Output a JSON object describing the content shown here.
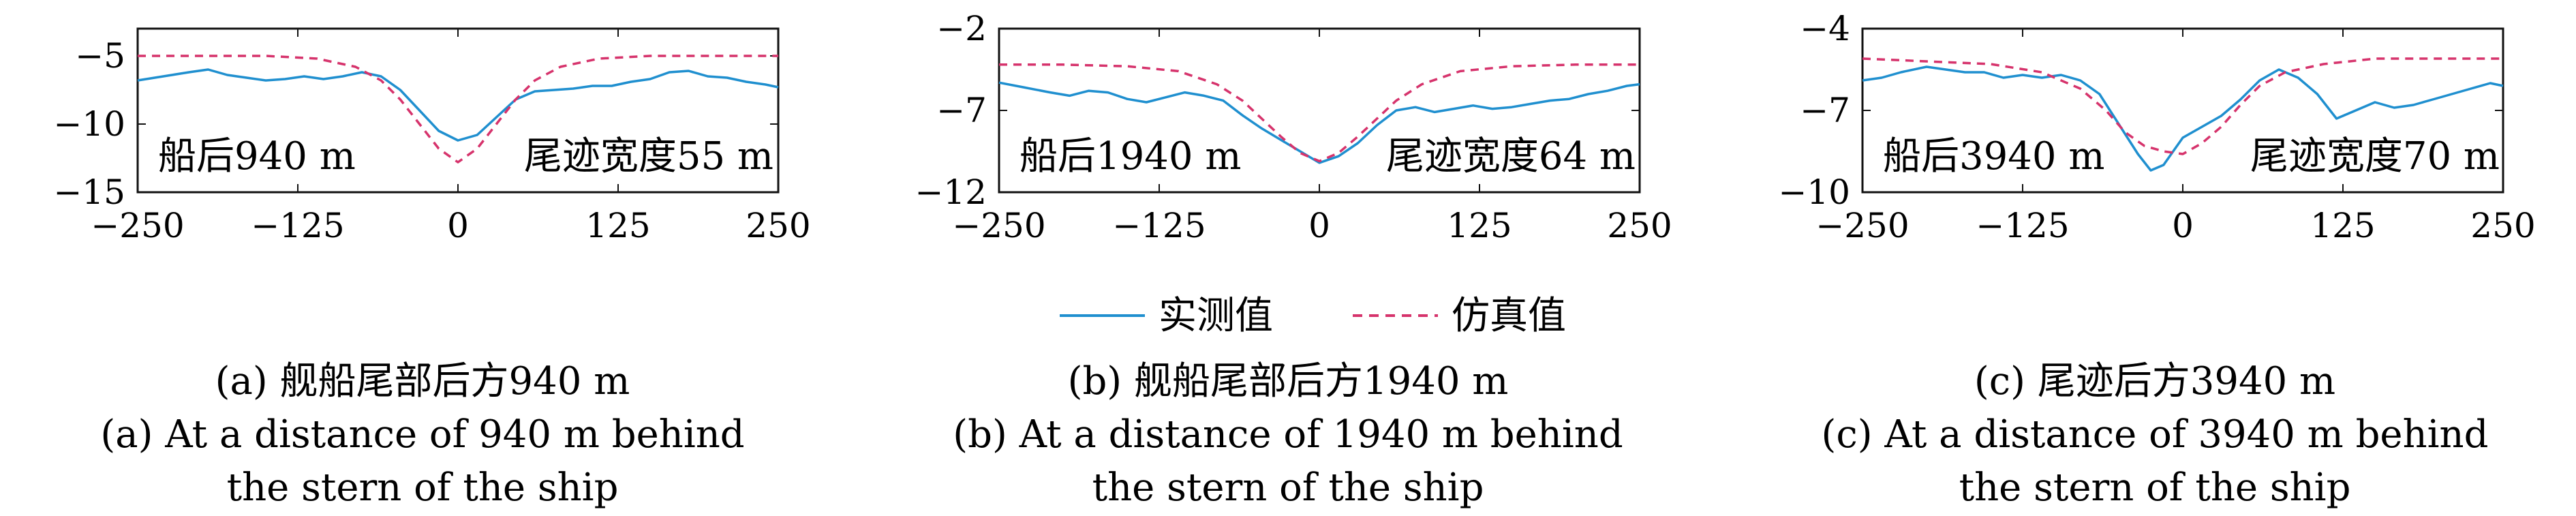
{
  "colors": {
    "measured": "#1f8fcf",
    "simulated": "#d6336c",
    "axis": "#111111"
  },
  "legend": {
    "measured": "实测值",
    "simulated": "仿真值"
  },
  "chart_data": [
    {
      "type": "line",
      "id": "a",
      "annotation_left": "船后940 m",
      "annotation_right": "尾迹宽度55 m",
      "caption_cn": "(a) 舰船尾部后方940 m",
      "caption_en_1": "(a) At a distance of 940 m behind",
      "caption_en_2": "the stern of the ship",
      "xlim": [
        -250,
        250
      ],
      "ylim": [
        -15,
        -3
      ],
      "xticks": [
        -250,
        -125,
        0,
        125,
        250
      ],
      "yticks": [
        -5,
        -10,
        -15
      ],
      "series": [
        {
          "key": "measured",
          "points": [
            [
              -250,
              -6.8
            ],
            [
              -230,
              -6.5
            ],
            [
              -210,
              -6.2
            ],
            [
              -195,
              -6.0
            ],
            [
              -180,
              -6.4
            ],
            [
              -165,
              -6.6
            ],
            [
              -150,
              -6.8
            ],
            [
              -135,
              -6.7
            ],
            [
              -120,
              -6.5
            ],
            [
              -105,
              -6.7
            ],
            [
              -90,
              -6.5
            ],
            [
              -75,
              -6.2
            ],
            [
              -60,
              -6.5
            ],
            [
              -45,
              -7.5
            ],
            [
              -30,
              -9.0
            ],
            [
              -15,
              -10.5
            ],
            [
              0,
              -11.2
            ],
            [
              15,
              -10.8
            ],
            [
              30,
              -9.5
            ],
            [
              45,
              -8.2
            ],
            [
              60,
              -7.6
            ],
            [
              75,
              -7.5
            ],
            [
              90,
              -7.4
            ],
            [
              105,
              -7.2
            ],
            [
              120,
              -7.2
            ],
            [
              135,
              -6.9
            ],
            [
              150,
              -6.7
            ],
            [
              165,
              -6.2
            ],
            [
              180,
              -6.1
            ],
            [
              195,
              -6.5
            ],
            [
              210,
              -6.6
            ],
            [
              225,
              -6.9
            ],
            [
              240,
              -7.1
            ],
            [
              250,
              -7.3
            ]
          ]
        },
        {
          "key": "simulated",
          "points": [
            [
              -250,
              -5.0
            ],
            [
              -200,
              -5.0
            ],
            [
              -150,
              -5.0
            ],
            [
              -110,
              -5.2
            ],
            [
              -80,
              -5.8
            ],
            [
              -60,
              -6.8
            ],
            [
              -45,
              -8.2
            ],
            [
              -30,
              -10.0
            ],
            [
              -15,
              -11.8
            ],
            [
              0,
              -12.8
            ],
            [
              15,
              -11.8
            ],
            [
              30,
              -10.0
            ],
            [
              45,
              -8.2
            ],
            [
              60,
              -6.8
            ],
            [
              80,
              -5.8
            ],
            [
              110,
              -5.2
            ],
            [
              150,
              -5.0
            ],
            [
              200,
              -5.0
            ],
            [
              250,
              -5.0
            ]
          ]
        }
      ]
    },
    {
      "type": "line",
      "id": "b",
      "annotation_left": "船后1940 m",
      "annotation_right": "尾迹宽度64 m",
      "caption_cn": "(b) 舰船尾部后方1940 m",
      "caption_en_1": "(b) At a distance of 1940 m behind",
      "caption_en_2": "the stern of the ship",
      "xlim": [
        -250,
        250
      ],
      "ylim": [
        -12,
        -2
      ],
      "xticks": [
        -250,
        -125,
        0,
        125,
        250
      ],
      "yticks": [
        -2,
        -7,
        -12
      ],
      "series": [
        {
          "key": "measured",
          "points": [
            [
              -250,
              -5.3
            ],
            [
              -230,
              -5.6
            ],
            [
              -210,
              -5.9
            ],
            [
              -195,
              -6.1
            ],
            [
              -180,
              -5.8
            ],
            [
              -165,
              -5.9
            ],
            [
              -150,
              -6.3
            ],
            [
              -135,
              -6.5
            ],
            [
              -120,
              -6.2
            ],
            [
              -105,
              -5.9
            ],
            [
              -90,
              -6.1
            ],
            [
              -75,
              -6.4
            ],
            [
              -60,
              -7.3
            ],
            [
              -45,
              -8.1
            ],
            [
              -30,
              -8.8
            ],
            [
              -15,
              -9.5
            ],
            [
              0,
              -10.2
            ],
            [
              15,
              -9.8
            ],
            [
              30,
              -9.0
            ],
            [
              45,
              -7.9
            ],
            [
              60,
              -7.0
            ],
            [
              75,
              -6.8
            ],
            [
              90,
              -7.1
            ],
            [
              105,
              -6.9
            ],
            [
              120,
              -6.7
            ],
            [
              135,
              -6.9
            ],
            [
              150,
              -6.8
            ],
            [
              165,
              -6.6
            ],
            [
              180,
              -6.4
            ],
            [
              195,
              -6.3
            ],
            [
              210,
              -6.0
            ],
            [
              225,
              -5.8
            ],
            [
              240,
              -5.5
            ],
            [
              250,
              -5.4
            ]
          ]
        },
        {
          "key": "simulated",
          "points": [
            [
              -250,
              -4.2
            ],
            [
              -200,
              -4.2
            ],
            [
              -150,
              -4.3
            ],
            [
              -110,
              -4.6
            ],
            [
              -80,
              -5.4
            ],
            [
              -60,
              -6.4
            ],
            [
              -45,
              -7.5
            ],
            [
              -30,
              -8.6
            ],
            [
              -15,
              -9.6
            ],
            [
              0,
              -10.1
            ],
            [
              15,
              -9.6
            ],
            [
              30,
              -8.6
            ],
            [
              45,
              -7.5
            ],
            [
              60,
              -6.4
            ],
            [
              80,
              -5.4
            ],
            [
              110,
              -4.6
            ],
            [
              150,
              -4.3
            ],
            [
              200,
              -4.2
            ],
            [
              250,
              -4.2
            ]
          ]
        }
      ]
    },
    {
      "type": "line",
      "id": "c",
      "annotation_left": "船后3940 m",
      "annotation_right": "尾迹宽度70 m",
      "caption_cn": "(c) 尾迹后方3940 m",
      "caption_en_1": "(c) At a distance of 3940 m behind",
      "caption_en_2": "the stern of the ship",
      "xlim": [
        -250,
        250
      ],
      "ylim": [
        -10,
        -4
      ],
      "xticks": [
        -250,
        -125,
        0,
        125,
        250
      ],
      "yticks": [
        -4,
        -7,
        -10
      ],
      "series": [
        {
          "key": "measured",
          "points": [
            [
              -250,
              -5.9
            ],
            [
              -235,
              -5.8
            ],
            [
              -220,
              -5.6
            ],
            [
              -200,
              -5.4
            ],
            [
              -185,
              -5.5
            ],
            [
              -170,
              -5.6
            ],
            [
              -155,
              -5.6
            ],
            [
              -140,
              -5.8
            ],
            [
              -125,
              -5.7
            ],
            [
              -110,
              -5.8
            ],
            [
              -95,
              -5.7
            ],
            [
              -80,
              -5.9
            ],
            [
              -65,
              -6.4
            ],
            [
              -50,
              -7.5
            ],
            [
              -35,
              -8.6
            ],
            [
              -25,
              -9.2
            ],
            [
              -15,
              -9.0
            ],
            [
              0,
              -8.0
            ],
            [
              15,
              -7.6
            ],
            [
              30,
              -7.2
            ],
            [
              45,
              -6.6
            ],
            [
              60,
              -5.9
            ],
            [
              75,
              -5.5
            ],
            [
              90,
              -5.8
            ],
            [
              105,
              -6.4
            ],
            [
              120,
              -7.3
            ],
            [
              135,
              -7.0
            ],
            [
              150,
              -6.7
            ],
            [
              165,
              -6.9
            ],
            [
              180,
              -6.8
            ],
            [
              195,
              -6.6
            ],
            [
              210,
              -6.4
            ],
            [
              225,
              -6.2
            ],
            [
              240,
              -6.0
            ],
            [
              250,
              -6.1
            ]
          ]
        },
        {
          "key": "simulated",
          "points": [
            [
              -250,
              -5.1
            ],
            [
              -200,
              -5.2
            ],
            [
              -150,
              -5.3
            ],
            [
              -110,
              -5.6
            ],
            [
              -80,
              -6.2
            ],
            [
              -60,
              -7.0
            ],
            [
              -45,
              -7.8
            ],
            [
              -30,
              -8.3
            ],
            [
              -15,
              -8.5
            ],
            [
              0,
              -8.6
            ],
            [
              15,
              -8.2
            ],
            [
              30,
              -7.6
            ],
            [
              45,
              -6.8
            ],
            [
              60,
              -6.1
            ],
            [
              80,
              -5.6
            ],
            [
              110,
              -5.3
            ],
            [
              150,
              -5.1
            ],
            [
              200,
              -5.1
            ],
            [
              250,
              -5.1
            ]
          ]
        }
      ]
    }
  ]
}
